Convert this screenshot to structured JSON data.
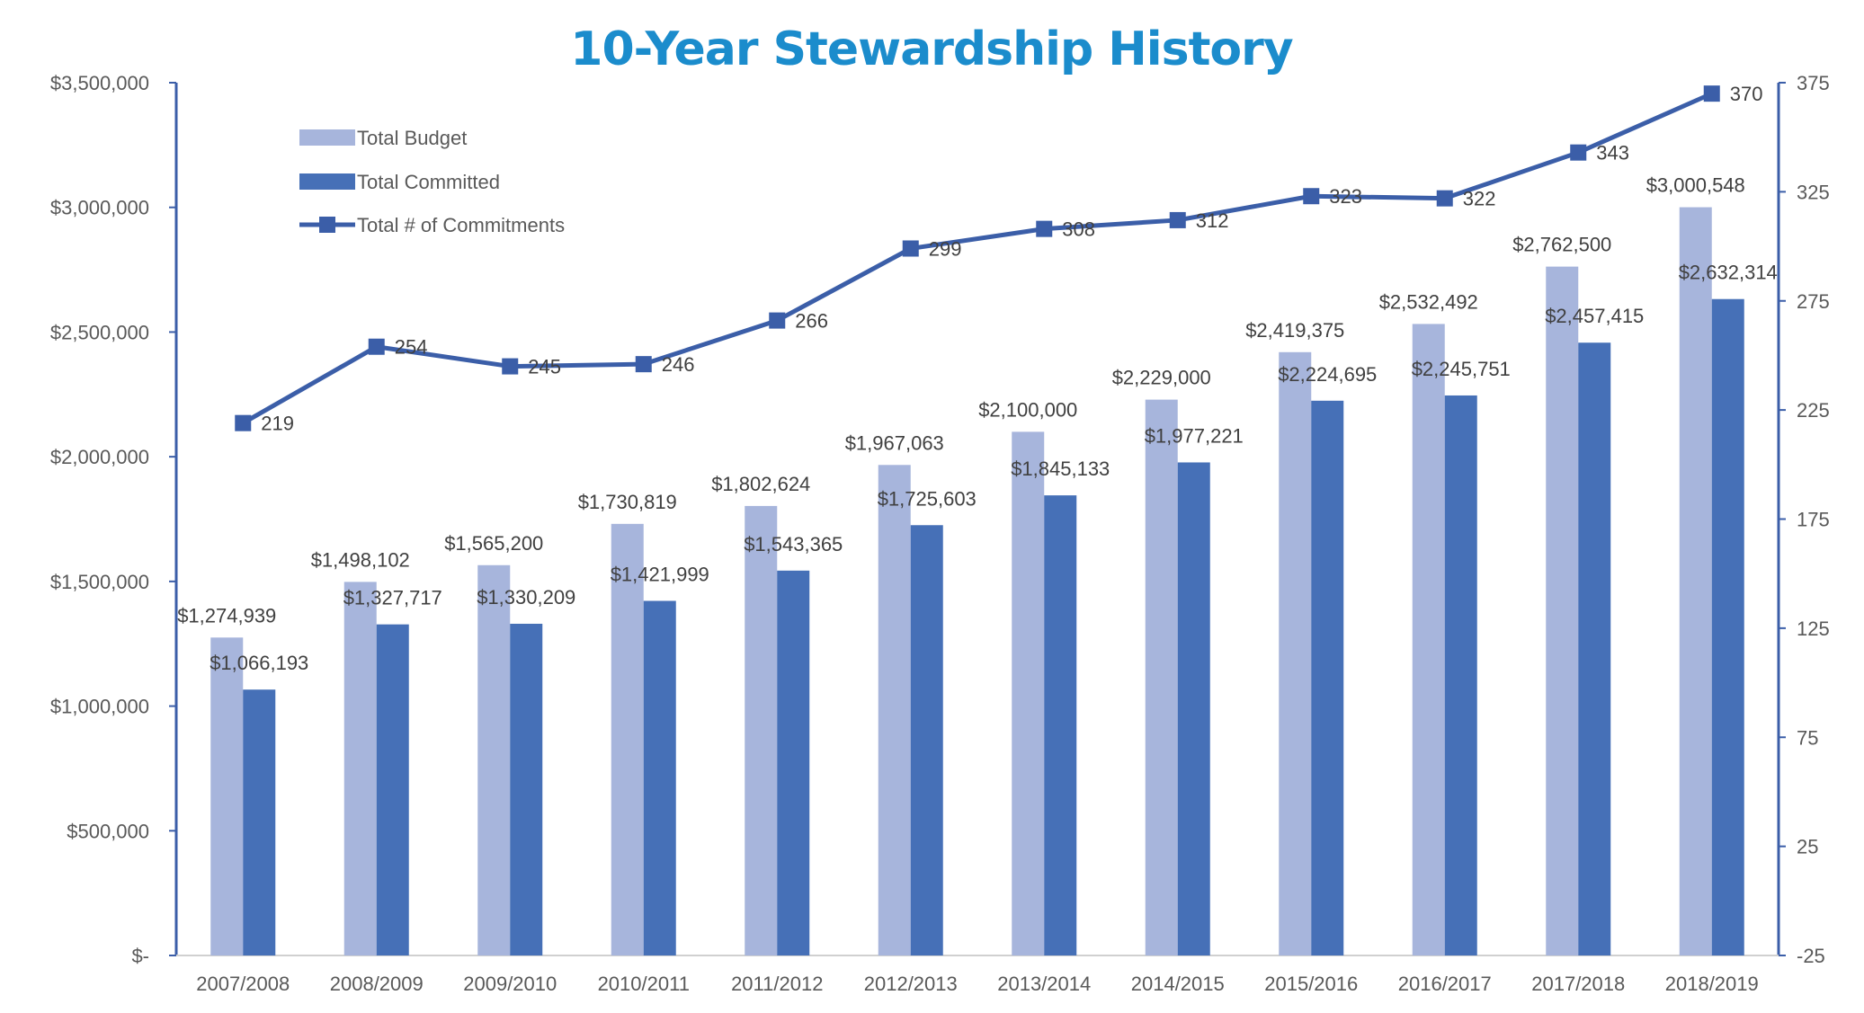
{
  "chart_data": {
    "type": "bar",
    "title": "10-Year Stewardship History",
    "categories": [
      "2007/2008",
      "2008/2009",
      "2009/2010",
      "2010/2011",
      "2011/2012",
      "2012/2013",
      "2013/2014",
      "2014/2015",
      "2015/2016",
      "2016/2017",
      "2017/2018",
      "2018/2019"
    ],
    "series": [
      {
        "name": "Total Budget",
        "kind": "bar",
        "axis": "left",
        "color": "#a7b5dc",
        "values": [
          1274939,
          1498102,
          1565200,
          1730819,
          1802624,
          1967063,
          2100000,
          2229000,
          2419375,
          2532492,
          2762500,
          3000548
        ],
        "labels": [
          "$1,274,939",
          "$1,498,102",
          "$1,565,200",
          "$1,730,819",
          "$1,802,624",
          "$1,967,063",
          "$2,100,000",
          "$2,229,000",
          "$2,419,375",
          "$2,532,492",
          "$2,762,500",
          "$3,000,548"
        ]
      },
      {
        "name": "Total Committed",
        "kind": "bar",
        "axis": "left",
        "color": "#4670b7",
        "values": [
          1066193,
          1327717,
          1330209,
          1421999,
          1543365,
          1725603,
          1845133,
          1977221,
          2224695,
          2245751,
          2457415,
          2632314
        ],
        "labels": [
          "$1,066,193",
          "$1,327,717",
          "$1,330,209",
          "$1,421,999",
          "$1,543,365",
          "$1,725,603",
          "$1,845,133",
          "$1,977,221",
          "$2,224,695",
          "$2,245,751",
          "$2,457,415",
          "$2,632,314"
        ]
      },
      {
        "name": "Total # of Commitments",
        "kind": "line",
        "axis": "right",
        "color": "#3b5ea8",
        "values": [
          219,
          254,
          245,
          246,
          266,
          299,
          308,
          312,
          323,
          322,
          343,
          370
        ],
        "labels": [
          "219",
          "254",
          "245",
          "246",
          "266",
          "299",
          "308",
          "312",
          "323",
          "322",
          "343",
          "370"
        ]
      }
    ],
    "left_axis": {
      "ylim": [
        0,
        3500000
      ],
      "ticks": [
        0,
        500000,
        1000000,
        1500000,
        2000000,
        2500000,
        3000000,
        3500000
      ],
      "tick_labels": [
        "$-",
        "$500,000",
        "$1,000,000",
        "$1,500,000",
        "$2,000,000",
        "$2,500,000",
        "$3,000,000",
        "$3,500,000"
      ]
    },
    "right_axis": {
      "ylim": [
        -25,
        375
      ],
      "ticks": [
        -25,
        25,
        75,
        125,
        175,
        225,
        275,
        325,
        375
      ],
      "tick_labels": [
        "-25",
        "25",
        "75",
        "125",
        "175",
        "225",
        "275",
        "325",
        "375"
      ]
    },
    "grid": false,
    "legend_position": "top-left",
    "axis_color": "#3b5ea8"
  }
}
